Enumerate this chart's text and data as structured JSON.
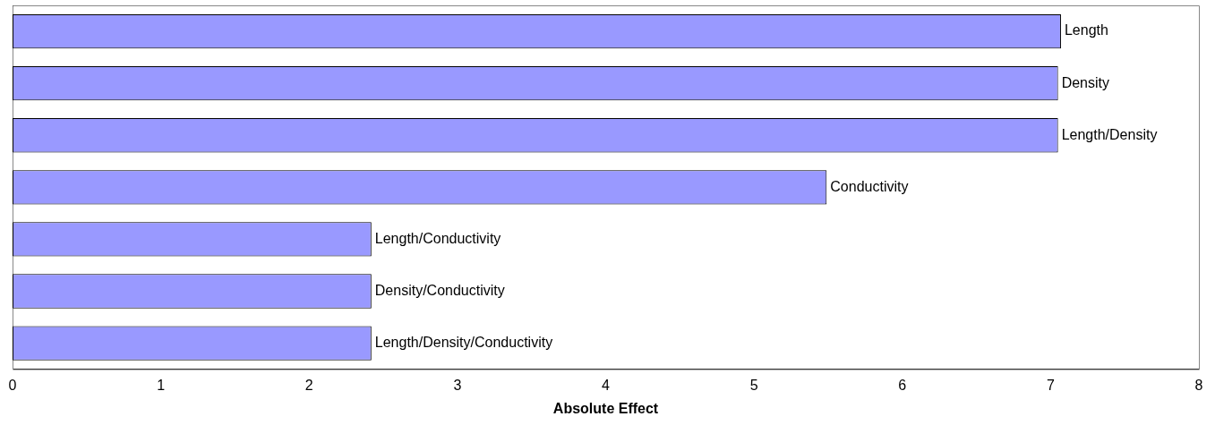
{
  "chart_data": {
    "type": "bar",
    "orientation": "horizontal",
    "xlabel": "Absolute Effect",
    "categories": [
      "Length",
      "Density",
      "Length/Density",
      "Conductivity",
      "Length/Conductivity",
      "Density/Conductivity",
      "Length/Density/Conductivity"
    ],
    "values": [
      7.07,
      7.05,
      7.05,
      5.49,
      2.42,
      2.42,
      2.42
    ],
    "color": "#9999ff",
    "xlim": [
      0,
      8
    ],
    "xticks": [
      0,
      1,
      2,
      3,
      4,
      5,
      6,
      7,
      8
    ],
    "grid": false,
    "legend": false,
    "tick_labels": "x"
  }
}
